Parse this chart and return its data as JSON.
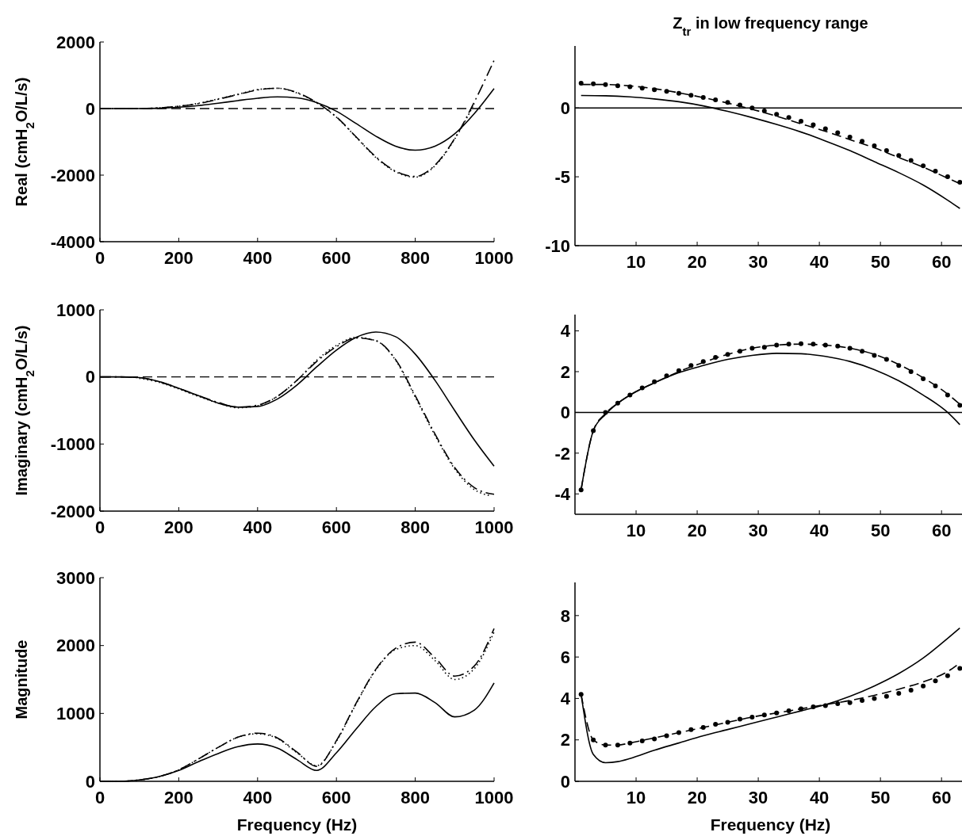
{
  "chart_data": [
    {
      "type": "line",
      "ylabel": "Real (cmH$_{2}$O/L/s)",
      "xlim": [
        0,
        1000
      ],
      "ylim": [
        -4000,
        2000
      ],
      "xticks": [
        0,
        200,
        400,
        600,
        800,
        1000
      ],
      "yticks": [
        -4000,
        -2000,
        0,
        2000
      ],
      "grid": false,
      "ref_lines": [
        {
          "axis": "y",
          "value": 0,
          "line_style": "dashed",
          "color": "#000000"
        }
      ],
      "series": [
        {
          "color": "#000000",
          "line_style": "solid",
          "marker": "none",
          "x": [
            0,
            50,
            100,
            150,
            200,
            250,
            300,
            350,
            400,
            450,
            500,
            550,
            600,
            650,
            700,
            750,
            800,
            850,
            900,
            950,
            1000
          ],
          "values": [
            0,
            0,
            0,
            10,
            40,
            90,
            160,
            240,
            310,
            350,
            320,
            180,
            -80,
            -450,
            -830,
            -1130,
            -1250,
            -1130,
            -760,
            -150,
            600
          ]
        },
        {
          "color": "#000000",
          "line_style": "dashdot",
          "marker": "none",
          "x": [
            0,
            50,
            100,
            150,
            200,
            250,
            300,
            350,
            400,
            450,
            500,
            550,
            600,
            650,
            700,
            750,
            800,
            850,
            900,
            950,
            1000
          ],
          "values": [
            0,
            0,
            0,
            20,
            70,
            150,
            280,
            420,
            560,
            610,
            480,
            180,
            -250,
            -850,
            -1450,
            -1880,
            -2040,
            -1700,
            -900,
            200,
            1450
          ]
        },
        {
          "color": "#000000",
          "line_style": "dotted",
          "marker": "none",
          "x": [
            0,
            50,
            100,
            150,
            200,
            250,
            300,
            350,
            400,
            450,
            500,
            550,
            600,
            650,
            700,
            750,
            800,
            850,
            900,
            950
          ],
          "values": [
            0,
            0,
            0,
            20,
            70,
            160,
            290,
            430,
            570,
            610,
            470,
            170,
            -260,
            -860,
            -1470,
            -1900,
            -2060,
            -1720,
            -920,
            150
          ]
        }
      ]
    },
    {
      "type": "line",
      "title": "Z$_{tr}$ in low frequency range",
      "xlim": [
        0,
        64
      ],
      "ylim": [
        -10,
        4.5
      ],
      "xticks": [
        10,
        20,
        30,
        40,
        50,
        60
      ],
      "yticks": [
        -10,
        -5,
        0
      ],
      "grid": false,
      "ref_lines": [
        {
          "axis": "y",
          "value": 0,
          "line_style": "solid",
          "color": "#000000"
        }
      ],
      "series": [
        {
          "color": "#000000",
          "line_style": "solid",
          "marker": "none",
          "x": [
            1,
            5,
            9,
            13,
            17,
            21,
            25,
            29,
            33,
            37,
            41,
            45,
            49,
            53,
            57,
            61,
            63
          ],
          "values": [
            0.9,
            0.88,
            0.8,
            0.65,
            0.45,
            0.15,
            -0.25,
            -0.7,
            -1.2,
            -1.75,
            -2.4,
            -3.1,
            -3.9,
            -4.7,
            -5.6,
            -6.7,
            -7.3
          ]
        },
        {
          "color": "#000000",
          "line_style": "dashed",
          "marker": "none",
          "x": [
            1,
            5,
            9,
            13,
            17,
            21,
            25,
            29,
            33,
            37,
            41,
            45,
            49,
            53,
            57,
            61,
            63
          ],
          "values": [
            1.7,
            1.7,
            1.6,
            1.4,
            1.1,
            0.75,
            0.35,
            -0.1,
            -0.6,
            -1.15,
            -1.7,
            -2.3,
            -2.9,
            -3.6,
            -4.3,
            -5.1,
            -5.5
          ]
        },
        {
          "type": "scatter",
          "color": "#000000",
          "marker": "circle",
          "x": [
            1,
            3,
            5,
            7,
            9,
            11,
            13,
            15,
            17,
            19,
            21,
            23,
            25,
            27,
            29,
            31,
            33,
            35,
            37,
            39,
            41,
            43,
            45,
            47,
            49,
            51,
            53,
            55,
            57,
            59,
            61,
            63
          ],
          "values": [
            1.8,
            1.75,
            1.69,
            1.61,
            1.53,
            1.43,
            1.32,
            1.2,
            1.06,
            0.92,
            0.76,
            0.59,
            0.4,
            0.21,
            0,
            -0.22,
            -0.46,
            -0.7,
            -0.96,
            -1.23,
            -1.51,
            -1.8,
            -2.11,
            -2.42,
            -2.75,
            -3.1,
            -3.45,
            -3.82,
            -4.2,
            -4.59,
            -4.99,
            -5.4
          ]
        }
      ]
    },
    {
      "type": "line",
      "ylabel": "Imaginary (cmH$_{2}$O/L/s)",
      "xlim": [
        0,
        1000
      ],
      "ylim": [
        -2000,
        1000
      ],
      "xticks": [
        0,
        200,
        400,
        600,
        800,
        1000
      ],
      "yticks": [
        -2000,
        -1000,
        0,
        1000
      ],
      "grid": false,
      "ref_lines": [
        {
          "axis": "y",
          "value": 0,
          "line_style": "dashed",
          "color": "#000000"
        }
      ],
      "series": [
        {
          "color": "#000000",
          "line_style": "solid",
          "marker": "none",
          "x": [
            0,
            50,
            100,
            150,
            200,
            250,
            300,
            350,
            400,
            450,
            500,
            550,
            600,
            650,
            700,
            750,
            800,
            850,
            900,
            950,
            1000
          ],
          "values": [
            0,
            0,
            -10,
            -70,
            -170,
            -280,
            -390,
            -450,
            -440,
            -330,
            -120,
            150,
            400,
            590,
            670,
            600,
            340,
            -50,
            -500,
            -940,
            -1330
          ]
        },
        {
          "color": "#000000",
          "line_style": "dashdot",
          "marker": "none",
          "x": [
            0,
            50,
            100,
            150,
            200,
            250,
            300,
            350,
            400,
            450,
            500,
            550,
            600,
            650,
            700,
            750,
            800,
            850,
            900,
            950,
            1000
          ],
          "values": [
            0,
            0,
            -10,
            -70,
            -170,
            -280,
            -380,
            -450,
            -420,
            -290,
            -50,
            230,
            450,
            580,
            540,
            260,
            -280,
            -850,
            -1350,
            -1650,
            -1750
          ]
        },
        {
          "color": "#000000",
          "line_style": "dotted",
          "marker": "none",
          "x": [
            100,
            150,
            200,
            250,
            300,
            350,
            400,
            450,
            500,
            550,
            600,
            650,
            700,
            750,
            800,
            850,
            900,
            950,
            990
          ],
          "values": [
            -20,
            -80,
            -180,
            -290,
            -390,
            -460,
            -430,
            -290,
            -50,
            250,
            470,
            590,
            540,
            250,
            -300,
            -870,
            -1370,
            -1680,
            -1770
          ]
        }
      ]
    },
    {
      "type": "line",
      "xlim": [
        0,
        64
      ],
      "ylim": [
        -5,
        4.8
      ],
      "xticks": [
        10,
        20,
        30,
        40,
        50,
        60
      ],
      "yticks": [
        -4,
        -2,
        0,
        2,
        4
      ],
      "grid": false,
      "ref_lines": [
        {
          "axis": "y",
          "value": 0,
          "line_style": "solid",
          "color": "#000000"
        }
      ],
      "series": [
        {
          "color": "#000000",
          "line_style": "solid",
          "marker": "none",
          "x": [
            1,
            3,
            5,
            7,
            9,
            13,
            17,
            21,
            25,
            29,
            33,
            37,
            41,
            45,
            49,
            53,
            57,
            61,
            63
          ],
          "values": [
            -3.8,
            -0.9,
            -0.1,
            0.45,
            0.85,
            1.45,
            1.95,
            2.3,
            2.6,
            2.8,
            2.9,
            2.88,
            2.75,
            2.5,
            2.1,
            1.55,
            0.85,
            0,
            -0.6
          ]
        },
        {
          "color": "#000000",
          "line_style": "dashed",
          "marker": "none",
          "x": [
            1,
            3,
            5,
            7,
            9,
            13,
            17,
            21,
            25,
            29,
            33,
            37,
            41,
            45,
            49,
            53,
            57,
            61,
            63
          ],
          "values": [
            -3.8,
            -0.9,
            -0.05,
            0.45,
            0.85,
            1.45,
            2,
            2.45,
            2.85,
            3.15,
            3.3,
            3.35,
            3.3,
            3.15,
            2.85,
            2.35,
            1.7,
            0.9,
            0.4
          ]
        },
        {
          "type": "scatter",
          "color": "#000000",
          "marker": "circle",
          "x": [
            1,
            3,
            5,
            7,
            9,
            11,
            13,
            15,
            17,
            19,
            21,
            23,
            25,
            27,
            29,
            31,
            33,
            35,
            37,
            39,
            41,
            43,
            45,
            47,
            49,
            51,
            53,
            55,
            57,
            59,
            61,
            63
          ],
          "values": [
            -3.8,
            -0.9,
            0,
            0.45,
            0.85,
            1.2,
            1.5,
            1.8,
            2.05,
            2.3,
            2.5,
            2.7,
            2.85,
            3,
            3.15,
            3.2,
            3.3,
            3.35,
            3.37,
            3.35,
            3.3,
            3.25,
            3.15,
            3,
            2.8,
            2.6,
            2.3,
            2,
            1.65,
            1.3,
            0.85,
            0.35
          ]
        }
      ]
    },
    {
      "type": "line",
      "xlabel": "Frequency (Hz)",
      "ylabel": "Magnitude",
      "xlim": [
        0,
        1000
      ],
      "ylim": [
        0,
        3000
      ],
      "xticks": [
        0,
        200,
        400,
        600,
        800,
        1000
      ],
      "yticks": [
        0,
        1000,
        2000,
        3000
      ],
      "grid": false,
      "series": [
        {
          "color": "#000000",
          "line_style": "solid",
          "marker": "none",
          "x": [
            0,
            50,
            100,
            150,
            200,
            250,
            300,
            350,
            400,
            450,
            500,
            550,
            600,
            650,
            700,
            750,
            800,
            850,
            900,
            950,
            1000
          ],
          "values": [
            0,
            0,
            20,
            70,
            160,
            290,
            410,
            510,
            550,
            490,
            320,
            160,
            420,
            770,
            1100,
            1290,
            1300,
            1160,
            950,
            1050,
            1450
          ]
        },
        {
          "color": "#000000",
          "line_style": "dashdot",
          "marker": "none",
          "x": [
            0,
            50,
            100,
            150,
            200,
            250,
            300,
            350,
            400,
            450,
            500,
            550,
            600,
            650,
            700,
            750,
            800,
            850,
            900,
            950,
            1000
          ],
          "values": [
            0,
            0,
            20,
            70,
            170,
            330,
            500,
            650,
            710,
            640,
            430,
            220,
            600,
            1150,
            1650,
            1960,
            2050,
            1820,
            1550,
            1700,
            2250
          ]
        },
        {
          "color": "#000000",
          "line_style": "dotted",
          "marker": "none",
          "x": [
            0,
            50,
            100,
            150,
            200,
            250,
            300,
            350,
            400,
            450,
            500,
            550,
            600,
            650,
            700,
            750,
            800,
            850,
            900,
            950,
            1000
          ],
          "values": [
            0,
            0,
            20,
            70,
            170,
            330,
            500,
            650,
            700,
            630,
            420,
            230,
            590,
            1140,
            1640,
            1940,
            2000,
            1780,
            1500,
            1660,
            2200
          ]
        }
      ]
    },
    {
      "type": "line",
      "xlabel": "Frequency (Hz)",
      "xlim": [
        0,
        64
      ],
      "ylim": [
        0,
        9.6
      ],
      "xticks": [
        10,
        20,
        30,
        40,
        50,
        60
      ],
      "yticks": [
        0,
        2,
        4,
        6,
        8
      ],
      "grid": false,
      "series": [
        {
          "color": "#000000",
          "line_style": "solid",
          "marker": "none",
          "x": [
            1,
            3,
            5,
            7,
            9,
            13,
            17,
            21,
            25,
            29,
            33,
            37,
            41,
            45,
            49,
            53,
            57,
            61,
            63
          ],
          "values": [
            4.2,
            1.3,
            0.9,
            0.95,
            1.1,
            1.5,
            1.85,
            2.2,
            2.5,
            2.8,
            3.1,
            3.4,
            3.7,
            4.1,
            4.6,
            5.2,
            5.95,
            6.9,
            7.4
          ]
        },
        {
          "color": "#000000",
          "line_style": "dashed",
          "marker": "none",
          "x": [
            1,
            3,
            5,
            7,
            9,
            13,
            17,
            21,
            25,
            29,
            33,
            37,
            41,
            45,
            49,
            53,
            57,
            61,
            62.5
          ],
          "values": [
            4.2,
            2,
            1.75,
            1.75,
            1.85,
            2.1,
            2.35,
            2.6,
            2.85,
            3.1,
            3.3,
            3.5,
            3.7,
            3.9,
            4.15,
            4.45,
            4.8,
            5.3,
            5.6
          ]
        },
        {
          "type": "scatter",
          "color": "#000000",
          "marker": "circle",
          "x": [
            1,
            3,
            5,
            7,
            9,
            11,
            13,
            15,
            17,
            19,
            21,
            23,
            25,
            27,
            29,
            31,
            33,
            35,
            37,
            39,
            41,
            43,
            45,
            47,
            49,
            51,
            53,
            55,
            57,
            59,
            61,
            63
          ],
          "values": [
            4.2,
            2,
            1.75,
            1.75,
            1.85,
            1.95,
            2.05,
            2.2,
            2.35,
            2.5,
            2.6,
            2.75,
            2.85,
            3,
            3.1,
            3.2,
            3.3,
            3.4,
            3.5,
            3.6,
            3.65,
            3.75,
            3.8,
            3.9,
            4,
            4.1,
            4.25,
            4.4,
            4.6,
            4.85,
            5.1,
            5.45
          ]
        }
      ]
    }
  ]
}
